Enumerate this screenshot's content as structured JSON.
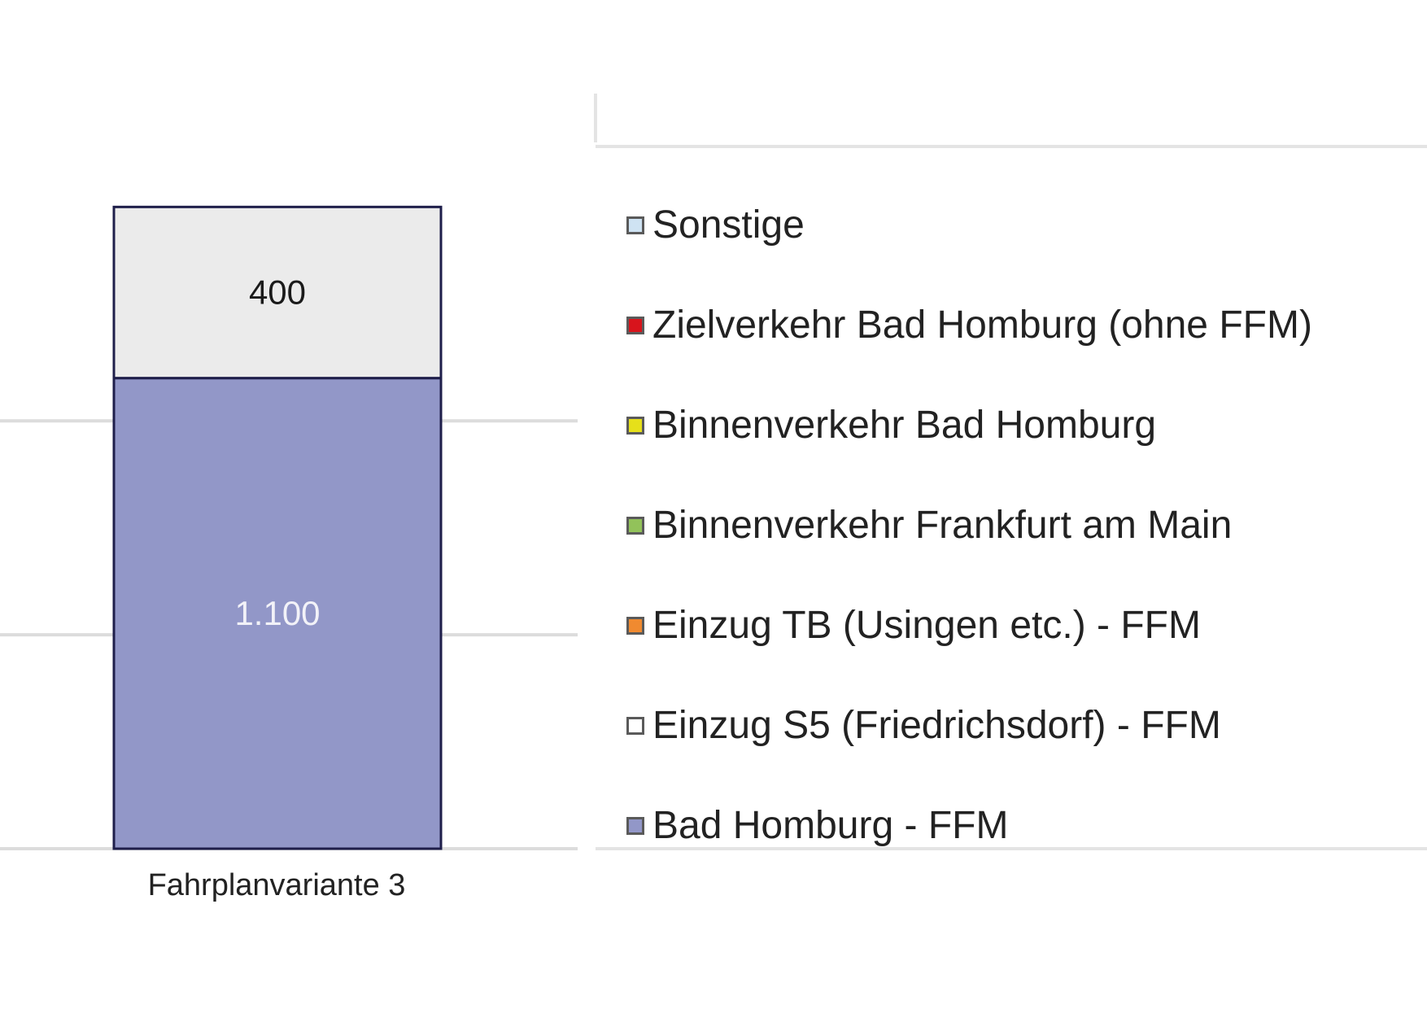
{
  "chart_data": {
    "type": "bar",
    "stacked": true,
    "categories": [
      "Fahrplanvariante 3"
    ],
    "series": [
      {
        "name": "Bad Homburg - FFM",
        "values": [
          1100
        ],
        "color": "#9297c8",
        "value_label": "1.100",
        "label_color": "#f2f2f8"
      },
      {
        "name": "Einzug S5 (Friedrichsdorf) - FFM",
        "values": [
          0
        ],
        "color": "#ffffff"
      },
      {
        "name": "Einzug TB (Usingen etc.) - FFM",
        "values": [
          0
        ],
        "color": "#f08a30"
      },
      {
        "name": "Binnenverkehr Frankfurt am Main",
        "values": [
          0
        ],
        "color": "#92c25a"
      },
      {
        "name": "Binnenverkehr Bad Homburg",
        "values": [
          0
        ],
        "color": "#e6e01a"
      },
      {
        "name": "Zielverkehr Bad Homburg (ohne FFM)",
        "values": [
          0
        ],
        "color": "#d8141c"
      },
      {
        "name": "Sonstige",
        "values": [
          400
        ],
        "color": "#ebebeb",
        "value_label": "400",
        "label_color": "#1a1a1a"
      }
    ],
    "legend_entries": [
      {
        "label": "Sonstige",
        "swatch": "#cfe3f3"
      },
      {
        "label": "Zielverkehr Bad Homburg (ohne FFM)",
        "swatch": "#d8141c"
      },
      {
        "label": "Binnenverkehr Bad Homburg",
        "swatch": "#e6e01a"
      },
      {
        "label": "Binnenverkehr Frankfurt am Main",
        "swatch": "#92c25a"
      },
      {
        "label": "Einzug TB (Usingen etc.) - FFM",
        "swatch": "#f08a30"
      },
      {
        "label": "Einzug S5 (Friedrichsdorf) - FFM",
        "swatch": "#ffffff"
      },
      {
        "label": "Bad Homburg - FFM",
        "swatch": "#9297c8"
      }
    ],
    "legend_position": "right",
    "grid": true,
    "gridlines_at": [
      0,
      500,
      1000
    ],
    "visible_top": 1765,
    "title": "",
    "xlabel": "",
    "ylabel": ""
  }
}
